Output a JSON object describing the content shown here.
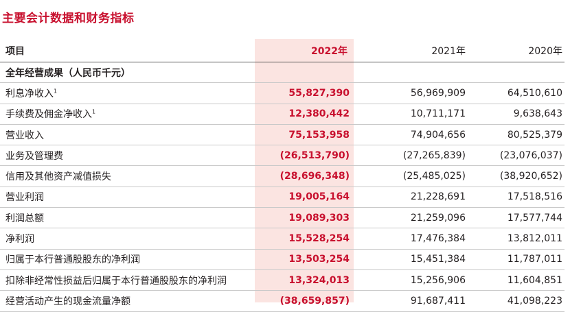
{
  "title": "主要会计数据和财务指标",
  "headers": {
    "item": "项目",
    "y2022": "2022年",
    "y2021": "2021年",
    "y2020": "2020年"
  },
  "section": "全年经营成果（人民币千元）",
  "rows": [
    {
      "label": "利息净收入",
      "note": "1",
      "y2022": "55,827,390",
      "y2021": "56,969,909",
      "y2020": "64,510,610"
    },
    {
      "label": "手续费及佣金净收入",
      "note": "1",
      "y2022": "12,380,442",
      "y2021": "10,711,171",
      "y2020": "9,638,643"
    },
    {
      "label": "营业收入",
      "y2022": "75,153,958",
      "y2021": "74,904,656",
      "y2020": "80,525,379"
    },
    {
      "label": "业务及管理费",
      "y2022": "(26,513,790)",
      "y2021": "(27,265,839)",
      "y2020": "(23,076,037)"
    },
    {
      "label": "信用及其他资产减值损失",
      "y2022": "(28,696,348)",
      "y2021": "(25,485,025)",
      "y2020": "(38,920,652)"
    },
    {
      "label": "营业利润",
      "y2022": "19,005,164",
      "y2021": "21,228,691",
      "y2020": "17,518,516"
    },
    {
      "label": "利润总额",
      "y2022": "19,089,303",
      "y2021": "21,259,096",
      "y2020": "17,577,744"
    },
    {
      "label": "净利润",
      "y2022": "15,528,254",
      "y2021": "17,476,384",
      "y2020": "13,812,011"
    },
    {
      "label": "归属于本行普通股股东的净利润",
      "y2022": "13,503,254",
      "y2021": "15,451,384",
      "y2020": "11,787,011"
    },
    {
      "label": "扣除非经常性损益后归属于本行普通股股东的净利润",
      "y2022": "13,324,013",
      "y2021": "15,256,906",
      "y2020": "11,604,851"
    },
    {
      "label": "经营活动产生的现金流量净额",
      "y2022": "(38,659,857)",
      "y2021": "91,687,411",
      "y2020": "41,098,223"
    }
  ]
}
